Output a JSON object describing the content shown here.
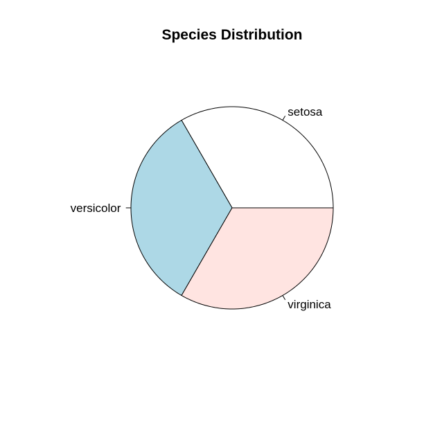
{
  "chart_data": {
    "type": "pie",
    "title": "Species Distribution",
    "slices": [
      {
        "label": "setosa",
        "value": 50,
        "color": "#ffffff"
      },
      {
        "label": "versicolor",
        "value": 50,
        "color": "#add8e6"
      },
      {
        "label": "virginica",
        "value": 50,
        "color": "#ffe4e1"
      }
    ],
    "start_angle_deg": 0,
    "direction": "counterclockwise"
  }
}
